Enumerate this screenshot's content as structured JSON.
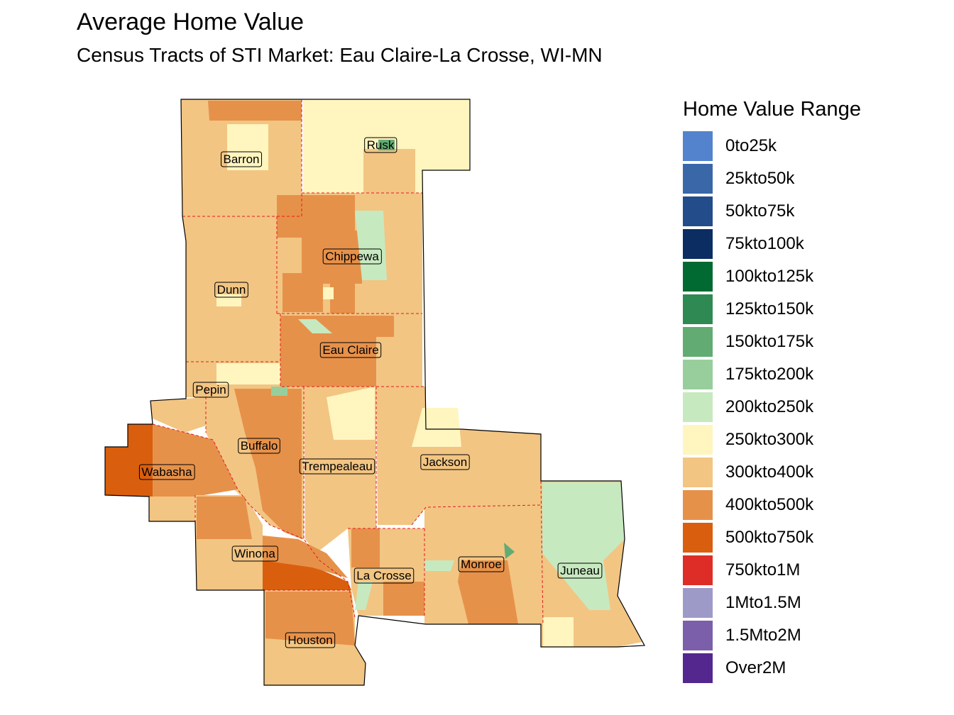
{
  "title": "Average Home Value",
  "subtitle": "Census Tracts of STI Market: Eau Claire-La Crosse, WI-MN",
  "legend": {
    "title": "Home Value Range",
    "items": [
      {
        "label": "0to25k",
        "color": "#5283cc"
      },
      {
        "label": "25kto50k",
        "color": "#3a67a8"
      },
      {
        "label": "50kto75k",
        "color": "#224c8a"
      },
      {
        "label": "75kto100k",
        "color": "#0c2d62"
      },
      {
        "label": "100kto125k",
        "color": "#006a32"
      },
      {
        "label": "125kto150k",
        "color": "#2e8a52"
      },
      {
        "label": "150kto175k",
        "color": "#62ac74"
      },
      {
        "label": "175kto200k",
        "color": "#98ce9c"
      },
      {
        "label": "200kto250k",
        "color": "#c7e9c0"
      },
      {
        "label": "250kto300k",
        "color": "#fff5bf"
      },
      {
        "label": "300kto400k",
        "color": "#f2c583"
      },
      {
        "label": "400kto500k",
        "color": "#e6914a"
      },
      {
        "label": "500kto750k",
        "color": "#d95f0e"
      },
      {
        "label": "750kto1M",
        "color": "#de2d26"
      },
      {
        "label": "1Mto1.5M",
        "color": "#9e9ac8"
      },
      {
        "label": "1.5Mto2M",
        "color": "#7b5fab"
      },
      {
        "label": "Over2M",
        "color": "#54278f"
      }
    ]
  },
  "counties": [
    "Barron",
    "Rusk",
    "Chippewa",
    "Dunn",
    "Eau Claire",
    "Pepin",
    "Buffalo",
    "Trempealeau",
    "Jackson",
    "Wabasha",
    "Winona",
    "La Crosse",
    "Monroe",
    "Juneau",
    "Houston"
  ]
}
